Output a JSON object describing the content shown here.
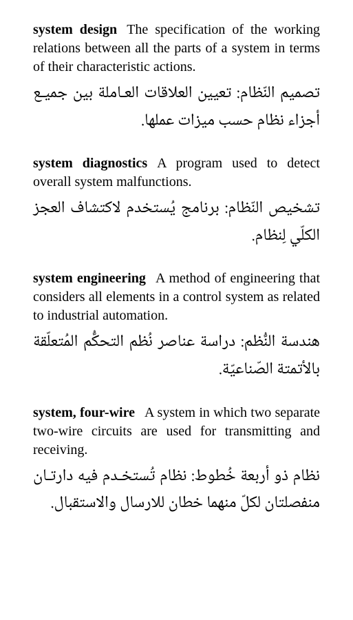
{
  "entries": [
    {
      "term": "system design",
      "definition_en": "The specification of the working relations between all the parts of a system in terms of their characteristic actions.",
      "definition_ar": "تصميم النّظام: تعيين العلاقات العـاملة بين جميـع أجزاء نظام حسب ميزات عملها."
    },
    {
      "term": "system diagnostics",
      "definition_en": "A program used to detect overall system malfunctions.",
      "definition_ar": "تشخيص النّظام: برنامج يُستخدم لاكتشاف العجز الكلّي لِنظام."
    },
    {
      "term": "system engineering",
      "definition_en": "A method of engineering that considers all elements in a control system as related to industrial automation.",
      "definition_ar": "هندسة النُّظم: دراسة عناصر نُظم التحكُّم المُتعلّقة بالأتمتة الصّناعيّة."
    },
    {
      "term": "system, four-wire",
      "definition_en": "A system in which two separate two-wire circuits are used for transmitting and receiving.",
      "definition_ar": "نظام ذو أربعة خُطوط: نظام تُستخـدم فيه دارتـان منفصلتان لكلّ منهما خطان للارسال والاستقبال."
    }
  ]
}
